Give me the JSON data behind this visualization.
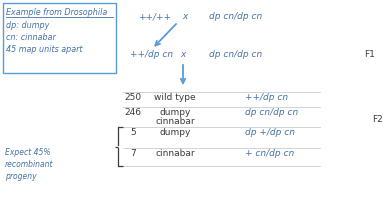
{
  "bg_color": "#ffffff",
  "box_color": "#5b9bd5",
  "box_text_color": "#4472a8",
  "arrow_color": "#5b9bd5",
  "table_line_color": "#c0c0c0",
  "text_color_dark": "#3c3c3c",
  "italic_color": "#4472a8",
  "f_label_color": "#3c3c3c",
  "box_title": "Example from Drosophila",
  "box_line1": "dp: dumpy",
  "box_line2": "cn: cinnabar",
  "box_line3": "45 map units apart",
  "cross1_left": "++/++",
  "cross1_x": "x",
  "cross1_right": "dp cn/dp cn",
  "cross2_left": "++/dp cn",
  "cross2_x": "x",
  "cross2_right": "dp cn/dp cn",
  "f1_label": "F1",
  "f2_label": "F2",
  "expect_text": "Expect 45%\nrecombinant\nprogeny",
  "row1_num": "250",
  "row1_desc": "wild type",
  "row1_gen": "++/dp cn",
  "row2_num": "246",
  "row2_desc1": "dumpy",
  "row2_desc2": "cinnabar",
  "row2_gen": "dp cn/dp cn",
  "row3_num": "5",
  "row3_desc": "dumpy",
  "row3_gen": "dp +/dp cn",
  "row4_num": "7",
  "row4_desc": "cinnabar",
  "row4_gen": "+ cn/dp cn"
}
